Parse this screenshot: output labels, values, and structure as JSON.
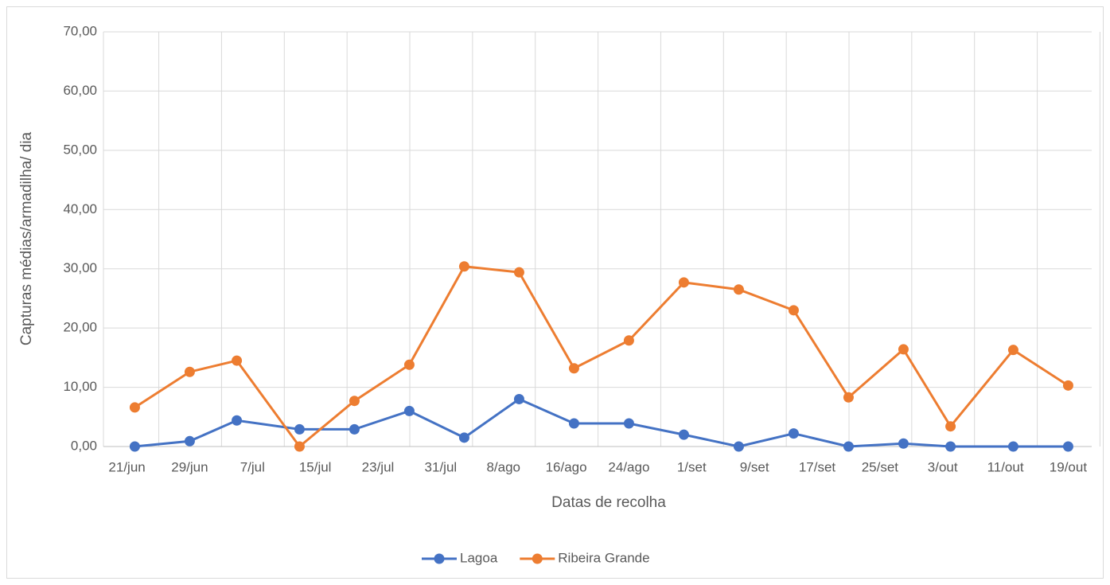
{
  "chart_data": {
    "type": "line",
    "x_label": "Datas de recolha",
    "y_label": "Capturas médias/armadilha/ dia",
    "x": [
      "06-22",
      "06-29",
      "07-05",
      "07-13",
      "07-20",
      "07-27",
      "08-03",
      "08-10",
      "08-17",
      "08-24",
      "08-31",
      "09-07",
      "09-14",
      "09-21",
      "09-28",
      "10-04",
      "10-12",
      "10-19"
    ],
    "series": [
      {
        "name": "Lagoa",
        "color": "#4472c4",
        "values": [
          0,
          0.9,
          4.4,
          2.9,
          2.9,
          6.0,
          1.5,
          8.0,
          3.9,
          3.9,
          2.0,
          0,
          2.2,
          0,
          0.5,
          0,
          0,
          0
        ]
      },
      {
        "name": "Ribeira Grande",
        "color": "#ed7d31",
        "values": [
          6.6,
          12.6,
          14.5,
          0,
          7.7,
          13.8,
          30.4,
          29.4,
          13.2,
          17.9,
          27.7,
          26.5,
          23.0,
          8.3,
          16.4,
          3.4,
          16.3,
          10.3
        ]
      }
    ],
    "xlim": [
      "06-18",
      "10-22"
    ],
    "xticks": [
      {
        "value": "06-21",
        "label": "21/jun"
      },
      {
        "value": "06-29",
        "label": "29/jun"
      },
      {
        "value": "07-07",
        "label": "7/jul"
      },
      {
        "value": "07-15",
        "label": "15/jul"
      },
      {
        "value": "07-23",
        "label": "23/jul"
      },
      {
        "value": "07-31",
        "label": "31/jul"
      },
      {
        "value": "08-08",
        "label": "8/ago"
      },
      {
        "value": "08-16",
        "label": "16/ago"
      },
      {
        "value": "08-24",
        "label": "24/ago"
      },
      {
        "value": "09-01",
        "label": "1/set"
      },
      {
        "value": "09-09",
        "label": "9/set"
      },
      {
        "value": "09-17",
        "label": "17/set"
      },
      {
        "value": "09-25",
        "label": "25/set"
      },
      {
        "value": "10-03",
        "label": "3/out"
      },
      {
        "value": "10-11",
        "label": "11/out"
      },
      {
        "value": "10-19",
        "label": "19/out"
      }
    ],
    "ylim": [
      0,
      70
    ],
    "yticks": [
      {
        "value": 0,
        "label": "0,00"
      },
      {
        "value": 10,
        "label": "10,00"
      },
      {
        "value": 20,
        "label": "20,00"
      },
      {
        "value": 30,
        "label": "30,00"
      },
      {
        "value": 40,
        "label": "40,00"
      },
      {
        "value": 50,
        "label": "50,00"
      },
      {
        "value": 60,
        "label": "60,00"
      },
      {
        "value": 70,
        "label": "70,00"
      }
    ],
    "grid": true,
    "legend": "bottom"
  }
}
